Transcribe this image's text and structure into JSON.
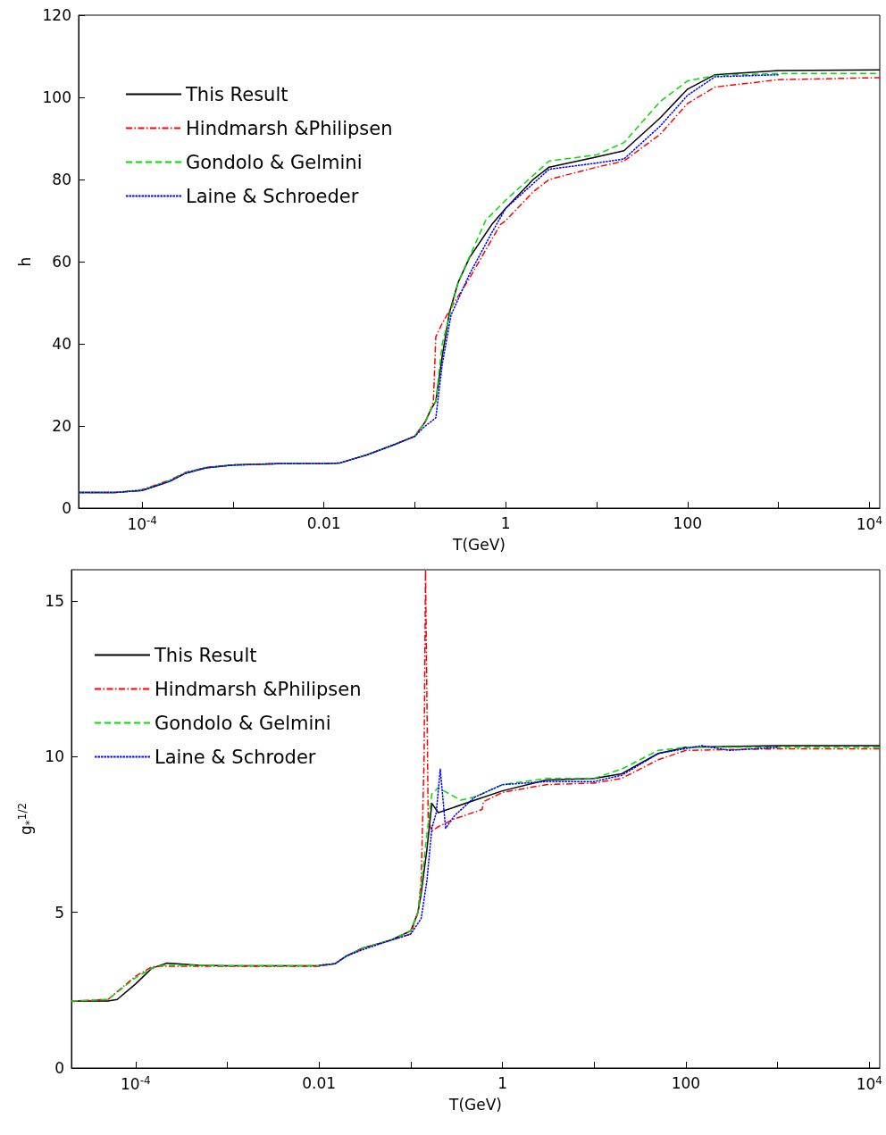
{
  "chart_data": [
    {
      "type": "line",
      "xlabel": "T(GeV)",
      "ylabel": "h",
      "log": "x",
      "legend": "top left",
      "grid": false,
      "marker": "none",
      "xlim": [
        2e-05,
        13000
      ],
      "ylim": [
        0,
        120
      ],
      "xticks": [
        {
          "value": 0.0001,
          "label": "10$^{-4}$"
        },
        {
          "value": 0.001,
          "label": null
        },
        0.01,
        {
          "value": 0.1,
          "label": null
        },
        1,
        {
          "value": 10,
          "label": null
        },
        100,
        {
          "value": 1000,
          "label": null
        },
        {
          "value": 10000,
          "label": "10$^{4}$"
        }
      ],
      "yticks": [
        0,
        20,
        40,
        60,
        80,
        100,
        120
      ],
      "series": [
        {
          "name": "This Result",
          "color": "#000000",
          "line_style": "solid",
          "x": [
            2e-05,
            5e-05,
            0.0001,
            0.0002,
            0.0003,
            0.0005,
            0.001,
            0.003,
            0.01,
            0.015,
            0.03,
            0.06,
            0.1,
            0.13,
            0.15,
            0.17,
            0.2,
            0.24,
            0.3,
            0.4,
            0.7,
            1,
            2,
            3,
            10,
            20,
            50,
            100,
            200,
            1000,
            13000
          ],
          "values": [
            3.8,
            3.8,
            4.3,
            6.5,
            8.5,
            9.8,
            10.5,
            10.8,
            10.8,
            11,
            13,
            15.5,
            17.5,
            21,
            24,
            26,
            37,
            47.6,
            55,
            61,
            69,
            73,
            80,
            83,
            85.5,
            87,
            95,
            102,
            105.5,
            106.5,
            106.7
          ]
        },
        {
          "name": "Hindmarsh &Philipsen",
          "color": "#ff0000",
          "line_style": "dashdot",
          "x": [
            2e-05,
            5e-05,
            0.0001,
            0.0002,
            0.0003,
            0.0005,
            0.001,
            0.003,
            0.01,
            0.015,
            0.03,
            0.06,
            0.1,
            0.13,
            0.15,
            0.16,
            0.17,
            0.2,
            0.27,
            0.4,
            0.87,
            1,
            2,
            3,
            10,
            20,
            50,
            100,
            200,
            1000,
            13000
          ],
          "values": [
            3.8,
            3.8,
            4.5,
            6.8,
            8.7,
            9.9,
            10.5,
            10.8,
            10.8,
            11,
            13,
            15.5,
            17.5,
            21,
            24,
            26,
            41.7,
            45,
            50,
            56,
            69,
            70,
            77,
            80,
            83,
            84.5,
            91,
            98.5,
            102.5,
            104.3,
            104.8
          ]
        },
        {
          "name": "Gondolo & Gelmini",
          "color": "#00dd00",
          "line_style": "dashed",
          "x": [
            2e-05,
            5e-05,
            0.0001,
            0.0002,
            0.0003,
            0.0005,
            0.001,
            0.003,
            0.01,
            0.015,
            0.03,
            0.06,
            0.1,
            0.13,
            0.15,
            0.17,
            0.2,
            0.3,
            0.6,
            1,
            3,
            10,
            20,
            50,
            100,
            200,
            1000,
            13000
          ],
          "values": [
            3.8,
            3.8,
            4.4,
            6.7,
            8.6,
            9.9,
            10.5,
            10.8,
            10.8,
            11,
            13,
            15.5,
            17.5,
            21,
            24,
            26,
            40,
            55,
            70,
            75,
            84.5,
            86,
            89,
            99,
            104,
            105.3,
            105.8,
            105.8
          ]
        },
        {
          "name": "Laine & Schroeder",
          "color": "#0000ff",
          "line_style": "dotted",
          "x": [
            2e-05,
            5e-05,
            0.0001,
            0.0002,
            0.0003,
            0.0005,
            0.001,
            0.003,
            0.01,
            0.015,
            0.03,
            0.06,
            0.1,
            0.13,
            0.15,
            0.17,
            0.2,
            0.25,
            0.4,
            0.7,
            1,
            3,
            10,
            20,
            50,
            100,
            200,
            1000
          ],
          "values": [
            3.8,
            3.8,
            4.3,
            6.5,
            8.5,
            9.8,
            10.5,
            10.8,
            10.8,
            11,
            13,
            15.5,
            17.5,
            20,
            21,
            22,
            35,
            47,
            57,
            67,
            73,
            82.5,
            84,
            85,
            93,
            100.5,
            105,
            105.5
          ]
        }
      ]
    },
    {
      "type": "line",
      "xlabel": "T(GeV)",
      "ylabel": "g$_{*}$$^{1/2}$",
      "log": "x",
      "legend": "top left",
      "grid": false,
      "marker": "none",
      "xlim": [
        2e-05,
        13000
      ],
      "ylim": [
        0,
        16
      ],
      "xticks": [
        {
          "value": 0.0001,
          "label": "10$^{-4}$"
        },
        {
          "value": 0.001,
          "label": null
        },
        0.01,
        {
          "value": 0.1,
          "label": null
        },
        1,
        {
          "value": 10,
          "label": null
        },
        100,
        {
          "value": 1000,
          "label": null
        },
        {
          "value": 10000,
          "label": "10$^{4}$"
        }
      ],
      "yticks": [
        0,
        5,
        10,
        15
      ],
      "series": [
        {
          "name": "This Result",
          "color": "#000000",
          "line_style": "solid",
          "x": [
            2e-05,
            5e-05,
            6.3e-05,
            0.0001,
            0.00015,
            0.00022,
            0.0005,
            0.001,
            0.01,
            0.015,
            0.02,
            0.03,
            0.06,
            0.1,
            0.12,
            0.13,
            0.15,
            0.17,
            0.2,
            0.5,
            1,
            3,
            10,
            20,
            50,
            100,
            1000,
            13000
          ],
          "values": [
            2.15,
            2.15,
            2.2,
            2.7,
            3.2,
            3.37,
            3.3,
            3.28,
            3.28,
            3.35,
            3.6,
            3.85,
            4.1,
            4.4,
            5,
            5.6,
            7,
            8.5,
            8.2,
            8.6,
            8.9,
            9.25,
            9.3,
            9.45,
            10.1,
            10.3,
            10.35,
            10.35
          ]
        },
        {
          "name": "Hindmarsh &Philipsen",
          "color": "#ff0000",
          "line_style": "dashdot",
          "x": [
            2e-05,
            5e-05,
            0.0001,
            0.00015,
            0.0002,
            0.0005,
            0.001,
            0.01,
            0.015,
            0.02,
            0.03,
            0.06,
            0.1,
            0.12,
            0.13,
            0.14,
            0.145,
            0.15,
            0.155,
            0.17,
            0.2,
            0.3,
            0.6,
            0.62,
            1,
            3,
            10,
            20,
            50,
            100,
            1000,
            13000
          ],
          "values": [
            2.15,
            2.2,
            2.95,
            3.25,
            3.27,
            3.27,
            3.27,
            3.27,
            3.35,
            3.6,
            3.85,
            4.1,
            4.3,
            5,
            6,
            10,
            16,
            12,
            8,
            7.6,
            7.75,
            8,
            8.3,
            8.55,
            8.85,
            9.1,
            9.15,
            9.3,
            9.9,
            10.2,
            10.25,
            10.25
          ]
        },
        {
          "name": "Gondolo & Gelmini",
          "color": "#00dd00",
          "line_style": "dashed",
          "x": [
            2e-05,
            5e-05,
            0.0001,
            0.00015,
            0.0002,
            0.0005,
            0.001,
            0.01,
            0.015,
            0.02,
            0.03,
            0.06,
            0.1,
            0.12,
            0.13,
            0.15,
            0.17,
            0.2,
            0.35,
            0.5,
            1,
            3,
            10,
            20,
            50,
            100,
            1000,
            13000
          ],
          "values": [
            2.15,
            2.2,
            2.9,
            3.2,
            3.3,
            3.3,
            3.28,
            3.28,
            3.35,
            3.6,
            3.85,
            4.1,
            4.4,
            5,
            5.8,
            7.5,
            8.8,
            9,
            8.6,
            8.7,
            9.1,
            9.3,
            9.3,
            9.6,
            10.2,
            10.3,
            10.3,
            10.3
          ]
        },
        {
          "name": "Laine & Schroder",
          "color": "#0000ff",
          "line_style": "dotted",
          "x": [
            0.01,
            0.015,
            0.02,
            0.03,
            0.06,
            0.1,
            0.13,
            0.15,
            0.17,
            0.19,
            0.21,
            0.24,
            0.3,
            0.5,
            1,
            3,
            10,
            20,
            50,
            150,
            300,
            1000
          ],
          "values": [
            3.3,
            3.35,
            3.6,
            3.8,
            4.1,
            4.3,
            4.8,
            6,
            7.7,
            8.2,
            9.6,
            7.7,
            8.1,
            8.7,
            9.1,
            9.2,
            9.2,
            9.4,
            10.1,
            10.35,
            10.2,
            10.3
          ]
        }
      ]
    }
  ]
}
